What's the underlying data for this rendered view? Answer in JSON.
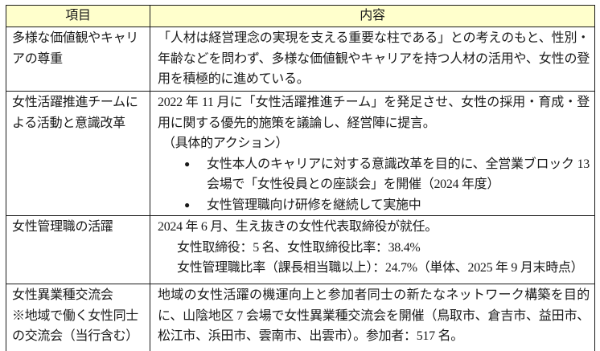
{
  "theme": {
    "text": "#1a1a1a",
    "border": "#1a1a1a",
    "header_bg": "#ffffcc"
  },
  "table": {
    "header": {
      "item": "項目",
      "content": "内容"
    },
    "rows": [
      {
        "item": "多様な価値観やキャリアの尊重",
        "content": {
          "p1": "「人材は経営理念の実現を支える重要な柱である」との考えのもと、性別・年齢などを問わず、多様な価値観やキャリアを持つ人材の活用や、女性の登用を積極的に進めている。"
        }
      },
      {
        "item": "女性活躍推進チームによる活動と意識改革",
        "content": {
          "p1": "2022 年 11 月に「女性活躍推進チーム」を発足させ、女性の採用・育成・登用に関する優先的施策を議論し、経営陣に提言。",
          "p2": "（具体的アクション）",
          "bullet_glyph": "●",
          "bullets": [
            "女性本人のキャリアに対する意識改革を目的に、全営業ブロック 13 会場で「女性役員との座談会」を開催（2024 年度）",
            "女性管理職向け研修を継続して実施中"
          ]
        }
      },
      {
        "item": "女性管理職の活躍",
        "content": {
          "p1": "2024 年 6 月、生え抜きの女性代表取締役が就任。",
          "indent1": "女性取締役：5 名、女性取締役比率：38.4%",
          "indent2": "女性管理職比率（課長相当職以上）：24.7%（単体、2025 年 9 月末時点）"
        }
      },
      {
        "item": "女性異業種交流会",
        "item_note": "※地域で働く女性同士の交流会（当行含む）",
        "content": {
          "p1": "地域の女性活躍の機運向上と参加者同士の新たなネットワーク構築を目的に、山陰地区 7 会場で女性異業種交流会を開催（鳥取市、倉吉市、益田市、松江市、浜田市、雲南市、出雲市）。参加者：517 名。"
        }
      }
    ]
  }
}
